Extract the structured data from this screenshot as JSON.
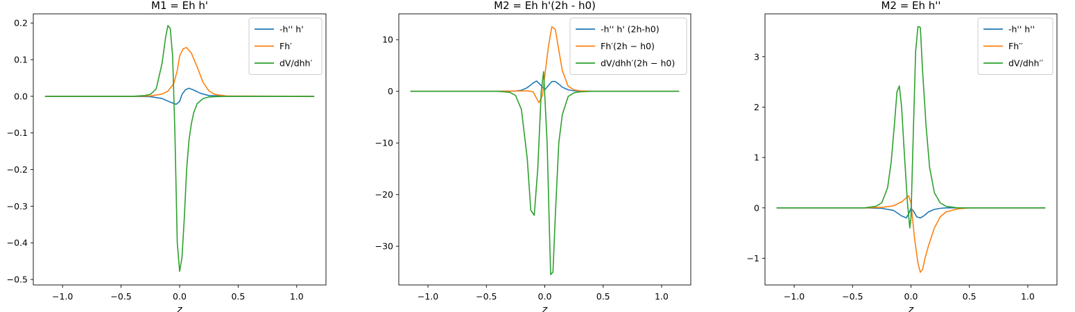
{
  "chart_data": [
    {
      "type": "line",
      "title": "M1 = Eh h'",
      "xlabel": "z",
      "ylabel": "",
      "xlim": [
        -1.25,
        1.25
      ],
      "ylim": [
        -0.515,
        0.225
      ],
      "xticks": [
        -1.0,
        -0.5,
        0.0,
        0.5,
        1.0
      ],
      "xtick_labels": [
        "−1.0",
        "−0.5",
        "0.0",
        "0.5",
        "1.0"
      ],
      "yticks": [
        0.2,
        0.1,
        0.0,
        -0.1,
        -0.2,
        -0.3,
        -0.4,
        -0.5
      ],
      "ytick_labels": [
        "0.2",
        "0.1",
        "0.0",
        "−0.1",
        "−0.2",
        "−0.3",
        "−0.4",
        "−0.5"
      ],
      "legend_position": "upper right",
      "series": [
        {
          "name": "-h'' h'",
          "color": "#1f77b4",
          "x": [
            -1.15,
            -0.4,
            -0.25,
            -0.15,
            -0.08,
            -0.03,
            0.0,
            0.02,
            0.05,
            0.08,
            0.12,
            0.18,
            0.25,
            0.4,
            1.15
          ],
          "y": [
            0,
            0,
            -0.001,
            -0.006,
            -0.016,
            -0.022,
            -0.014,
            0.005,
            0.018,
            0.022,
            0.017,
            0.008,
            0.002,
            0,
            0
          ]
        },
        {
          "name": "Fh′",
          "color": "#ff7f0e",
          "x": [
            -1.15,
            -0.4,
            -0.25,
            -0.15,
            -0.1,
            -0.05,
            -0.02,
            0.0,
            0.03,
            0.06,
            0.1,
            0.15,
            0.2,
            0.25,
            0.3,
            0.4,
            1.15
          ],
          "y": [
            0,
            0,
            0.001,
            0.006,
            0.014,
            0.035,
            0.07,
            0.11,
            0.13,
            0.133,
            0.118,
            0.08,
            0.038,
            0.015,
            0.005,
            0.001,
            0
          ]
        },
        {
          "name": "dV/dhh′",
          "color": "#2ca02c",
          "x": [
            -1.15,
            -0.4,
            -0.3,
            -0.25,
            -0.2,
            -0.15,
            -0.12,
            -0.1,
            -0.08,
            -0.06,
            -0.04,
            -0.02,
            0.0,
            0.02,
            0.04,
            0.06,
            0.08,
            0.1,
            0.12,
            0.15,
            0.2,
            0.25,
            0.3,
            0.4,
            1.15
          ],
          "y": [
            0,
            0,
            0.002,
            0.005,
            0.02,
            0.09,
            0.16,
            0.193,
            0.185,
            0.11,
            -0.1,
            -0.4,
            -0.478,
            -0.44,
            -0.33,
            -0.2,
            -0.12,
            -0.075,
            -0.045,
            -0.02,
            -0.006,
            -0.002,
            -0.001,
            0,
            0
          ]
        }
      ]
    },
    {
      "type": "line",
      "title": "M2 = Eh h'(2h - h0)",
      "xlabel": "z",
      "ylabel": "",
      "xlim": [
        -1.25,
        1.25
      ],
      "ylim": [
        -37.5,
        15
      ],
      "xticks": [
        -1.0,
        -0.5,
        0.0,
        0.5,
        1.0
      ],
      "xtick_labels": [
        "−1.0",
        "−0.5",
        "0.0",
        "0.5",
        "1.0"
      ],
      "yticks": [
        10,
        0,
        -10,
        -20,
        -30
      ],
      "ytick_labels": [
        "10",
        "0",
        "−10",
        "−20",
        "−30"
      ],
      "legend_position": "upper right",
      "series": [
        {
          "name": "-h'' h' (2h-h0)",
          "color": "#1f77b4",
          "x": [
            -1.15,
            -0.4,
            -0.25,
            -0.2,
            -0.15,
            -0.1,
            -0.07,
            -0.03,
            0.0,
            0.03,
            0.06,
            0.09,
            0.12,
            0.15,
            0.2,
            0.25,
            0.3,
            0.4,
            1.15
          ],
          "y": [
            0,
            0,
            0.05,
            0.2,
            0.7,
            1.6,
            2.0,
            1.1,
            0.3,
            1.1,
            1.9,
            1.9,
            1.4,
            0.8,
            0.3,
            0.1,
            0.03,
            0,
            0
          ]
        },
        {
          "name": "Fh′(2h − h0)",
          "color": "#ff7f0e",
          "x": [
            -1.15,
            -0.4,
            -0.25,
            -0.15,
            -0.1,
            -0.05,
            -0.02,
            0.0,
            0.03,
            0.06,
            0.09,
            0.12,
            0.15,
            0.2,
            0.25,
            0.3,
            0.4,
            1.15
          ],
          "y": [
            0,
            0,
            0.05,
            0.1,
            -0.1,
            -2.2,
            -0.8,
            3.0,
            8.5,
            12.5,
            12.0,
            8.0,
            4.0,
            1.0,
            0.3,
            0.1,
            0,
            0
          ]
        },
        {
          "name": "dV/dhh′(2h − h0)",
          "color": "#2ca02c",
          "x": [
            -1.15,
            -0.4,
            -0.3,
            -0.25,
            -0.2,
            -0.15,
            -0.12,
            -0.09,
            -0.06,
            -0.03,
            -0.01,
            0.02,
            0.05,
            0.07,
            0.09,
            0.12,
            0.15,
            0.2,
            0.25,
            0.3,
            0.4,
            1.15
          ],
          "y": [
            0,
            0,
            -0.2,
            -0.8,
            -3.5,
            -13.0,
            -23.0,
            -24.0,
            -15.0,
            0.0,
            3.8,
            -10.0,
            -35.5,
            -35.0,
            -24.0,
            -10.0,
            -4.5,
            -1.0,
            -0.3,
            -0.1,
            0,
            0
          ]
        }
      ]
    },
    {
      "type": "line",
      "title": "M2 = Eh h''",
      "xlabel": "z",
      "ylabel": "",
      "xlim": [
        -1.25,
        1.25
      ],
      "ylim": [
        -1.53,
        3.85
      ],
      "xticks": [
        -1.0,
        -0.5,
        0.0,
        0.5,
        1.0
      ],
      "xtick_labels": [
        "−1.0",
        "−0.5",
        "0.0",
        "0.5",
        "1.0"
      ],
      "yticks": [
        3,
        2,
        1,
        0,
        -1
      ],
      "ytick_labels": [
        "3",
        "2",
        "1",
        "0",
        "−1"
      ],
      "legend_position": "upper right",
      "series": [
        {
          "name": "-h'' h''",
          "color": "#1f77b4",
          "x": [
            -1.15,
            -0.4,
            -0.25,
            -0.15,
            -0.08,
            -0.04,
            -0.02,
            0.0,
            0.02,
            0.05,
            0.08,
            0.11,
            0.15,
            0.2,
            0.25,
            0.3,
            0.4,
            1.15
          ],
          "y": [
            0,
            0,
            -0.01,
            -0.05,
            -0.16,
            -0.2,
            -0.12,
            -0.01,
            -0.06,
            -0.18,
            -0.2,
            -0.16,
            -0.08,
            -0.03,
            -0.01,
            0,
            0,
            0
          ]
        },
        {
          "name": "Fh′′",
          "color": "#ff7f0e",
          "x": [
            -1.15,
            -0.4,
            -0.25,
            -0.15,
            -0.08,
            -0.04,
            -0.02,
            0.0,
            0.03,
            0.06,
            0.08,
            0.1,
            0.12,
            0.15,
            0.2,
            0.25,
            0.3,
            0.4,
            0.5,
            1.15
          ],
          "y": [
            0,
            0,
            0.01,
            0.04,
            0.12,
            0.2,
            0.24,
            0.1,
            -0.6,
            -1.1,
            -1.28,
            -1.22,
            -1.0,
            -0.75,
            -0.4,
            -0.18,
            -0.08,
            -0.02,
            0,
            0
          ]
        },
        {
          "name": "dV/dhh′′",
          "color": "#2ca02c",
          "x": [
            -1.15,
            -0.4,
            -0.3,
            -0.25,
            -0.2,
            -0.17,
            -0.14,
            -0.12,
            -0.1,
            -0.08,
            -0.06,
            -0.03,
            -0.01,
            0.0,
            0.02,
            0.04,
            0.06,
            0.08,
            0.1,
            0.13,
            0.16,
            0.2,
            0.25,
            0.3,
            0.4,
            1.15
          ],
          "y": [
            0,
            0,
            0.03,
            0.1,
            0.4,
            0.9,
            1.7,
            2.3,
            2.42,
            2.0,
            1.2,
            0.1,
            -0.4,
            -0.2,
            1.5,
            3.1,
            3.6,
            3.58,
            2.7,
            1.6,
            0.8,
            0.3,
            0.1,
            0.03,
            0,
            0
          ]
        }
      ]
    }
  ]
}
